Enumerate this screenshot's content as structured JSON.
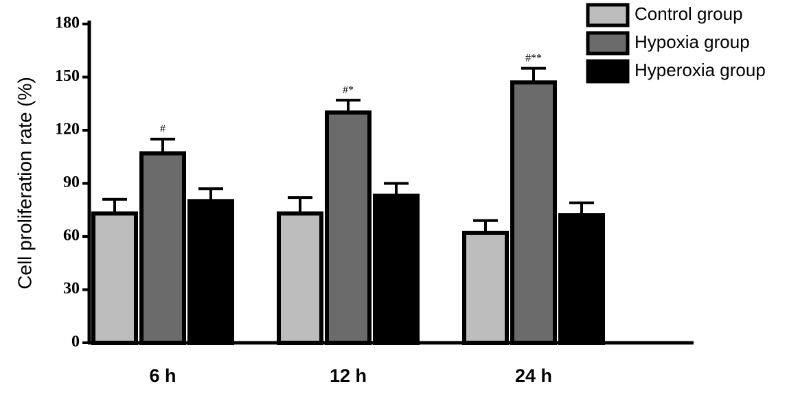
{
  "chart_data": {
    "type": "bar",
    "y_label": "Cell proliferation rate (%)",
    "categories": [
      "6 h",
      "12 h",
      "24 h"
    ],
    "series": [
      {
        "name": "Control group",
        "color": "#bdbdbd",
        "values": [
          73,
          73,
          62
        ],
        "errors": [
          8,
          9,
          7
        ]
      },
      {
        "name": "Hypoxia group",
        "color": "#6b6b6b",
        "values": [
          107,
          130,
          147
        ],
        "errors": [
          8,
          7,
          8
        ]
      },
      {
        "name": "Hyperoxia group",
        "color": "#000000",
        "values": [
          80,
          83,
          72
        ],
        "errors": [
          7,
          7,
          7
        ]
      }
    ],
    "annotations": [
      "#",
      "#*",
      "#**"
    ],
    "ylim": [
      0,
      180
    ],
    "yticks": [
      0,
      30,
      60,
      90,
      120,
      150,
      180
    ],
    "grid": false,
    "legend": "top-right"
  }
}
